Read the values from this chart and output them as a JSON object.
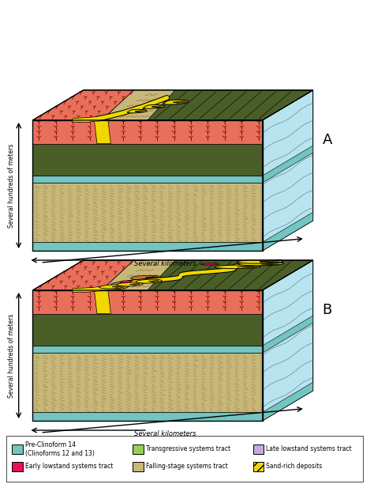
{
  "bg_color": "#ffffff",
  "label_A": "A",
  "label_B": "B",
  "axis_label_vertical": "Several hundreds of meters",
  "axis_label_horizontal": "Several kilometers",
  "colors": {
    "teal": "#72c5c0",
    "salmon": "#e8705a",
    "yellow": "#f0d800",
    "tan": "#c8b878",
    "dark_green": "#4a5f28",
    "light_blue": "#b8e4f0",
    "pink": "#e8105a",
    "lavender": "#c8a8e0",
    "light_green": "#98d050",
    "orange_brown": "#c07828",
    "black": "#000000",
    "white": "#ffffff",
    "dark_teal": "#50a8a0"
  },
  "legend": [
    {
      "label": "Pre-Clinoform 14\n(Clinoforms 12 and 13)",
      "color": "#72c5c0",
      "hatch": ""
    },
    {
      "label": "Early lowstand systems tract",
      "color": "#e8105a",
      "hatch": ""
    },
    {
      "label": "Transgressive systems tract",
      "color": "#98d050",
      "hatch": ""
    },
    {
      "label": "Falling-stage systems tract",
      "color": "#c8b878",
      "hatch": ""
    },
    {
      "label": "Late lowstand systems tract",
      "color": "#c8a8e0",
      "hatch": ""
    },
    {
      "label": "Sand-rich deposits",
      "color": "#f0d800",
      "hatch": "///"
    }
  ]
}
